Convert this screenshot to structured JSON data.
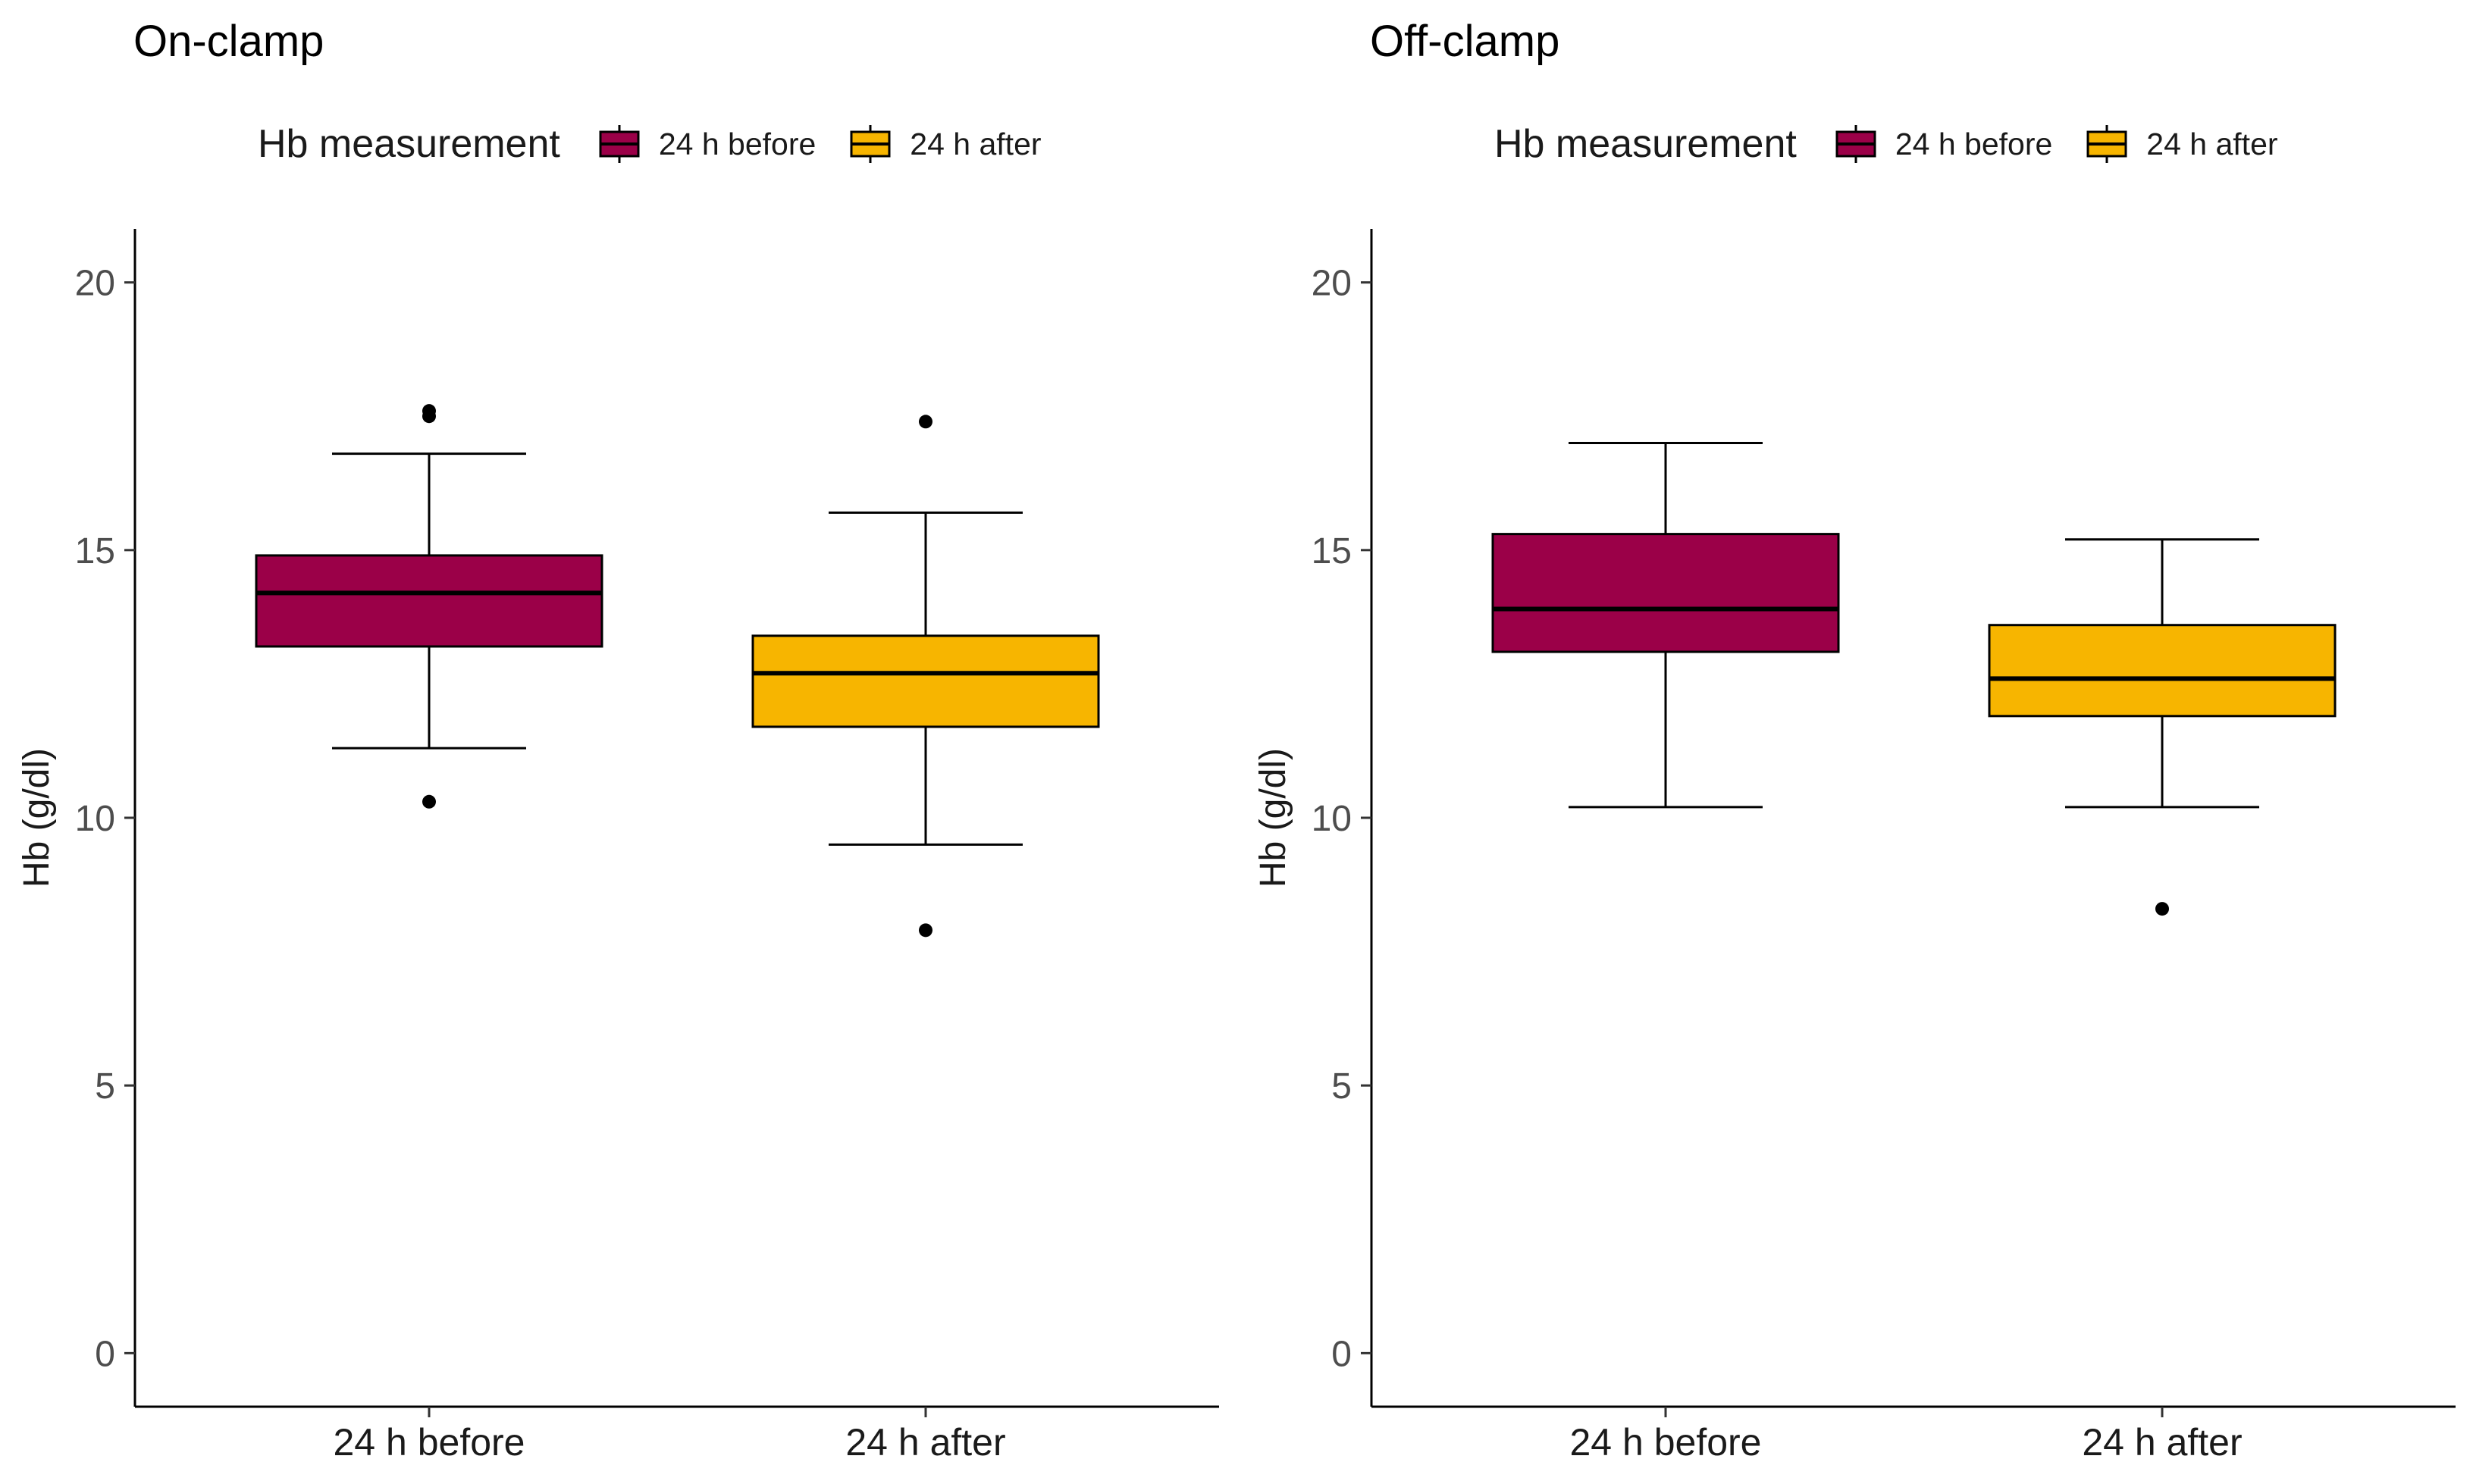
{
  "chart_data": [
    {
      "type": "box",
      "title": "On-clamp",
      "xlabel": "",
      "ylabel": "Hb (g/dl)",
      "ylim": [
        -1,
        21
      ],
      "yticks": [
        0,
        5,
        10,
        15,
        20
      ],
      "legend": {
        "title": "Hb measurement",
        "position": "top",
        "entries": [
          {
            "label": "24 h before",
            "color": "#9b0048"
          },
          {
            "label": "24 h after",
            "color": "#f7b500"
          }
        ]
      },
      "categories": [
        "24 h before",
        "24 h after"
      ],
      "boxes": [
        {
          "category": "24 h before",
          "color": "#9b0048",
          "whisker_low": 11.3,
          "q1": 13.2,
          "median": 14.2,
          "q3": 14.9,
          "whisker_high": 16.8,
          "outliers": [
            17.5,
            17.6,
            10.3
          ]
        },
        {
          "category": "24 h after",
          "color": "#f7b500",
          "whisker_low": 9.5,
          "q1": 11.7,
          "median": 12.7,
          "q3": 13.4,
          "whisker_high": 15.7,
          "outliers": [
            17.4,
            7.9
          ]
        }
      ]
    },
    {
      "type": "box",
      "title": "Off-clamp",
      "xlabel": "",
      "ylabel": "Hb (g/dl)",
      "ylim": [
        -1,
        21
      ],
      "yticks": [
        0,
        5,
        10,
        15,
        20
      ],
      "legend": {
        "title": "Hb measurement",
        "position": "top",
        "entries": [
          {
            "label": "24 h before",
            "color": "#9b0048"
          },
          {
            "label": "24 h after",
            "color": "#f7b500"
          }
        ]
      },
      "categories": [
        "24 h before",
        "24 h after"
      ],
      "boxes": [
        {
          "category": "24 h before",
          "color": "#9b0048",
          "whisker_low": 10.2,
          "q1": 13.1,
          "median": 13.9,
          "q3": 15.3,
          "whisker_high": 17.0,
          "outliers": []
        },
        {
          "category": "24 h after",
          "color": "#f7b500",
          "whisker_low": 10.2,
          "q1": 11.9,
          "median": 12.6,
          "q3": 13.6,
          "whisker_high": 15.2,
          "outliers": [
            8.3
          ]
        }
      ]
    }
  ]
}
